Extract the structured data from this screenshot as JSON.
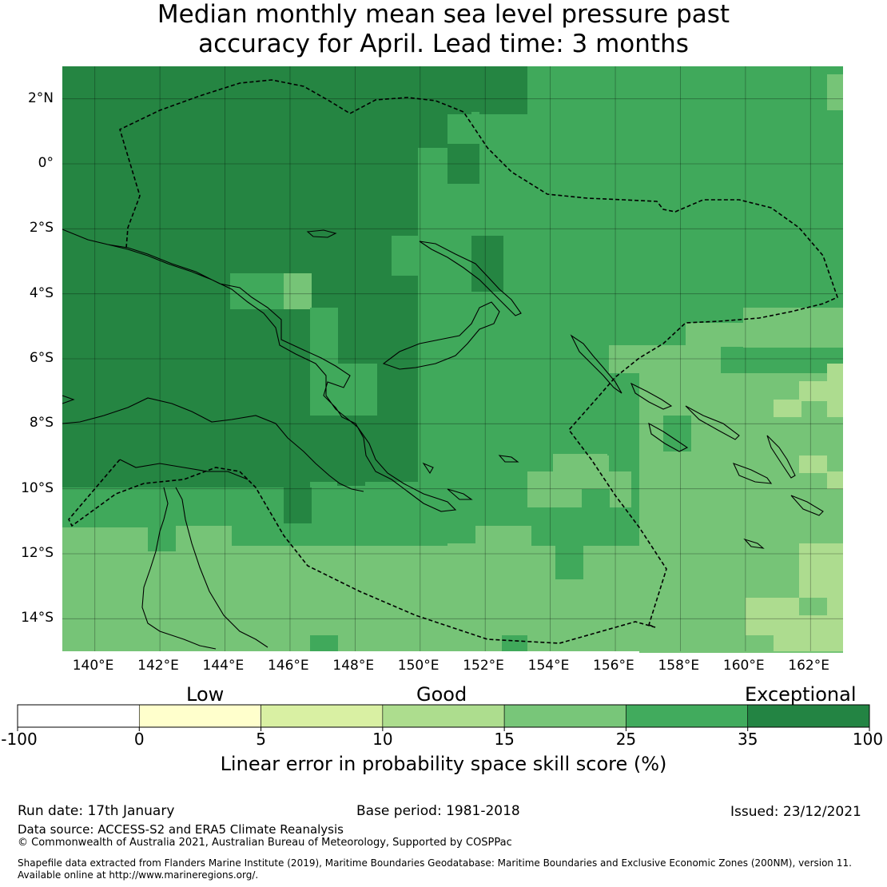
{
  "title": {
    "line1": "Median monthly mean sea level pressure past",
    "line2": "accuracy for April. Lead time: 3 months"
  },
  "map": {
    "lon_range": [
      139,
      163
    ],
    "lat_range": [
      -15,
      3
    ],
    "lon_ticks": [
      "140°E",
      "142°E",
      "144°E",
      "146°E",
      "148°E",
      "150°E",
      "152°E",
      "154°E",
      "156°E",
      "158°E",
      "160°E",
      "162°E"
    ],
    "lat_ticks": [
      "2°N",
      "0°",
      "2°S",
      "4°S",
      "6°S",
      "8°S",
      "10°S",
      "12°S",
      "14°S"
    ],
    "category_colors": {
      "A": "#258542",
      "B": "#40a95b",
      "C": "#76c477",
      "D": "#addc8f"
    }
  },
  "colorbar": {
    "words": {
      "low": "Low",
      "good": "Good",
      "exceptional": "Exceptional"
    },
    "ticks": [
      "-100",
      "0",
      "5",
      "10",
      "15",
      "25",
      "35",
      "100"
    ],
    "colors": [
      "#ffffff",
      "#ffffcc",
      "#d9f0a3",
      "#addd8e",
      "#78c679",
      "#41ab5d",
      "#238443"
    ],
    "label": "Linear error in probability space skill score (%)"
  },
  "footer": {
    "run_date": "Run date: 17th January",
    "base_period": "Base period: 1981-2018",
    "issued": "Issued: 23/12/2021",
    "data_source": "Data source: ACCESS-S2 and ERA5 Climate Reanalysis",
    "copyright": "© Commonwealth of Australia 2021, Australian Bureau of Meteorology, Supported by COSPPac",
    "shapefile_1": "Shapefile data extracted from Flanders Marine Institute (2019), Maritime Boundaries Geodatabase: Maritime Boundaries and Exclusive Economic Zones (200NM), version 11.",
    "shapefile_2": "Available online at http://www.marineregions.org/."
  }
}
